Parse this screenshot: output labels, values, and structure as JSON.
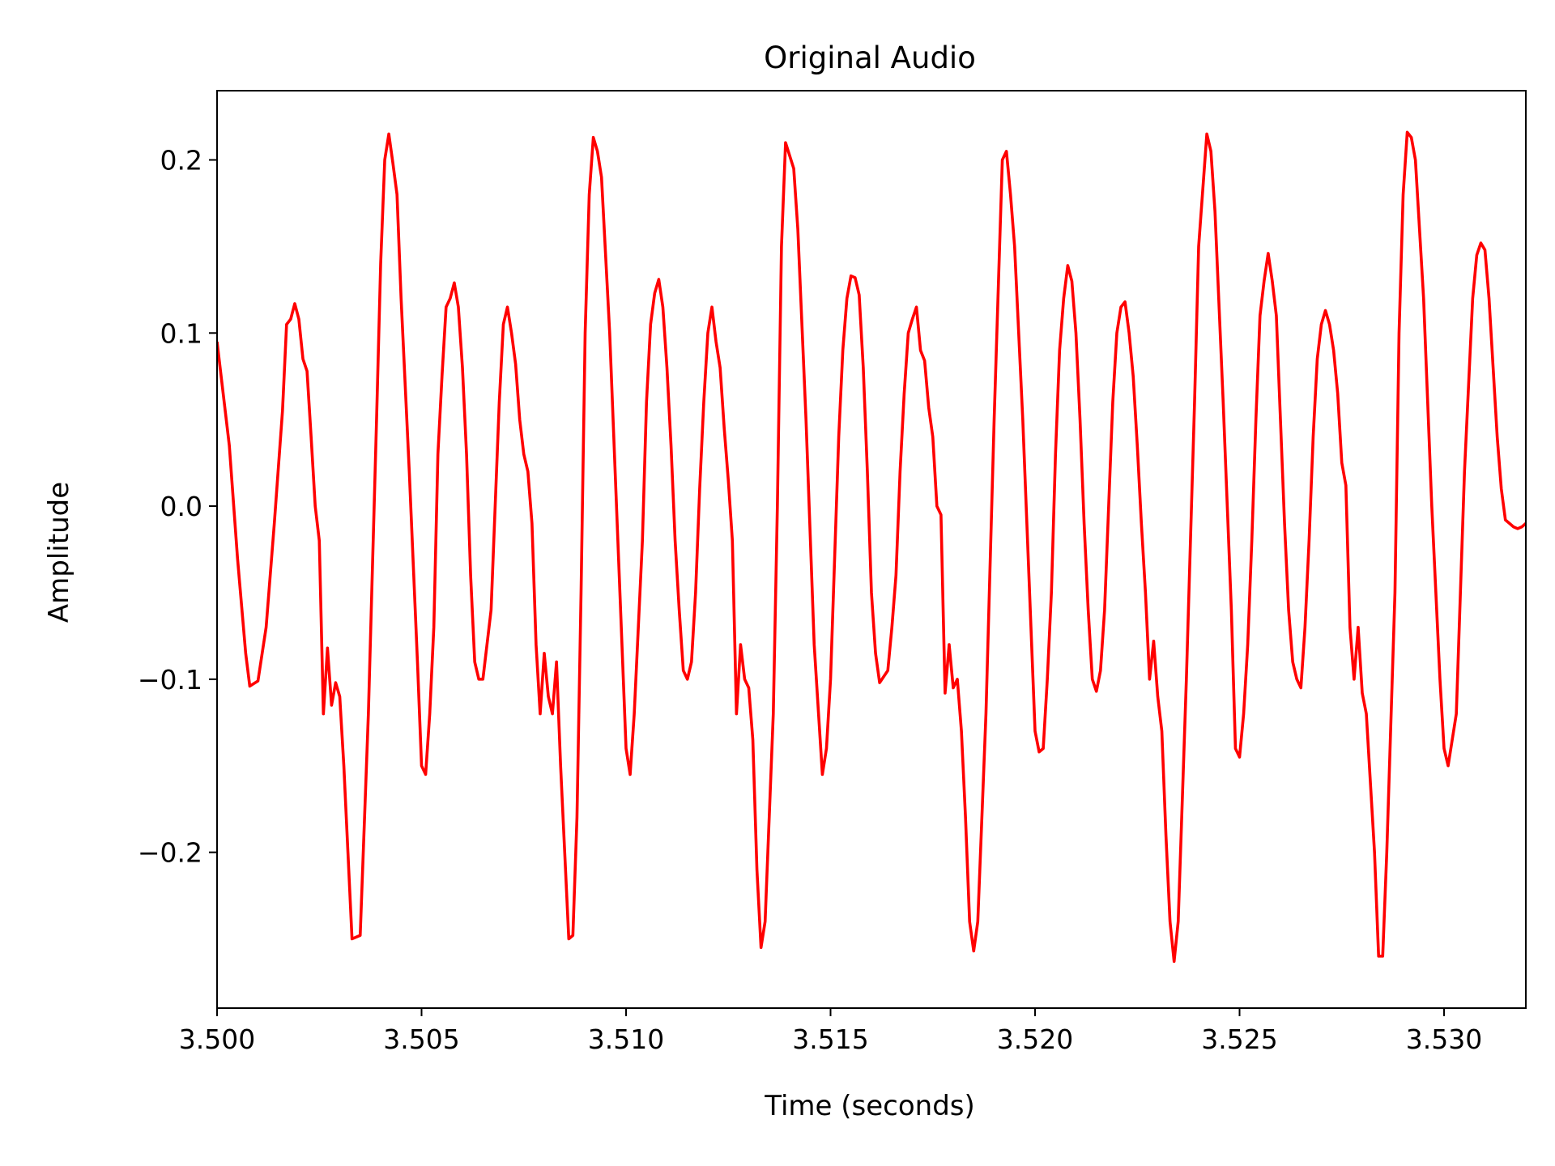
{
  "chart_data": {
    "type": "line",
    "title": "Original Audio",
    "xlabel": "Time (seconds)",
    "ylabel": "Amplitude",
    "xlim": [
      3.5,
      3.532
    ],
    "ylim": [
      -0.29,
      0.24
    ],
    "x_ticks": [
      3.5,
      3.505,
      3.51,
      3.515,
      3.52,
      3.525,
      3.53
    ],
    "x_tick_labels": [
      "3.500",
      "3.505",
      "3.510",
      "3.515",
      "3.520",
      "3.525",
      "3.530"
    ],
    "y_ticks": [
      -0.2,
      -0.1,
      0.0,
      0.1,
      0.2
    ],
    "y_tick_labels": [
      "−0.2",
      "−0.1",
      "0.0",
      "0.1",
      "0.2"
    ],
    "grid": false,
    "legend": "none",
    "series": [
      {
        "color": "#ff0000",
        "points": [
          [
            3.5,
            0.095
          ],
          [
            3.5003,
            0.035
          ],
          [
            3.5005,
            -0.03
          ],
          [
            3.5007,
            -0.085
          ],
          [
            3.5008,
            -0.104
          ],
          [
            3.501,
            -0.101
          ],
          [
            3.5012,
            -0.07
          ],
          [
            3.5014,
            -0.01
          ],
          [
            3.5016,
            0.055
          ],
          [
            3.5017,
            0.105
          ],
          [
            3.5018,
            0.108
          ],
          [
            3.5019,
            0.117
          ],
          [
            3.502,
            0.108
          ],
          [
            3.5021,
            0.085
          ],
          [
            3.5022,
            0.078
          ],
          [
            3.5023,
            0.04
          ],
          [
            3.5024,
            0.0
          ],
          [
            3.5025,
            -0.02
          ],
          [
            3.5026,
            -0.12
          ],
          [
            3.5027,
            -0.082
          ],
          [
            3.5028,
            -0.115
          ],
          [
            3.5029,
            -0.102
          ],
          [
            3.503,
            -0.11
          ],
          [
            3.5031,
            -0.15
          ],
          [
            3.5032,
            -0.2
          ],
          [
            3.5033,
            -0.25
          ],
          [
            3.5035,
            -0.248
          ],
          [
            3.5037,
            -0.12
          ],
          [
            3.5039,
            0.05
          ],
          [
            3.504,
            0.14
          ],
          [
            3.5041,
            0.2
          ],
          [
            3.5042,
            0.215
          ],
          [
            3.5043,
            0.198
          ],
          [
            3.5044,
            0.18
          ],
          [
            3.5045,
            0.12
          ],
          [
            3.5047,
            0.02
          ],
          [
            3.5049,
            -0.09
          ],
          [
            3.505,
            -0.15
          ],
          [
            3.5051,
            -0.155
          ],
          [
            3.5052,
            -0.12
          ],
          [
            3.5053,
            -0.07
          ],
          [
            3.5054,
            0.03
          ],
          [
            3.5055,
            0.075
          ],
          [
            3.5056,
            0.115
          ],
          [
            3.5057,
            0.12
          ],
          [
            3.5058,
            0.129
          ],
          [
            3.5059,
            0.115
          ],
          [
            3.506,
            0.08
          ],
          [
            3.5061,
            0.03
          ],
          [
            3.5062,
            -0.04
          ],
          [
            3.5063,
            -0.09
          ],
          [
            3.5064,
            -0.1
          ],
          [
            3.5065,
            -0.1
          ],
          [
            3.5067,
            -0.06
          ],
          [
            3.5068,
            0.0
          ],
          [
            3.5069,
            0.06
          ],
          [
            3.507,
            0.105
          ],
          [
            3.5071,
            0.115
          ],
          [
            3.5072,
            0.1
          ],
          [
            3.5073,
            0.082
          ],
          [
            3.5074,
            0.05
          ],
          [
            3.5075,
            0.03
          ],
          [
            3.5076,
            0.02
          ],
          [
            3.5077,
            -0.01
          ],
          [
            3.5078,
            -0.08
          ],
          [
            3.5079,
            -0.12
          ],
          [
            3.508,
            -0.085
          ],
          [
            3.5081,
            -0.11
          ],
          [
            3.5082,
            -0.12
          ],
          [
            3.5083,
            -0.09
          ],
          [
            3.5084,
            -0.15
          ],
          [
            3.5085,
            -0.2
          ],
          [
            3.5086,
            -0.25
          ],
          [
            3.5087,
            -0.248
          ],
          [
            3.5088,
            -0.18
          ],
          [
            3.5089,
            -0.05
          ],
          [
            3.509,
            0.1
          ],
          [
            3.5091,
            0.18
          ],
          [
            3.5092,
            0.213
          ],
          [
            3.5093,
            0.205
          ],
          [
            3.5094,
            0.19
          ],
          [
            3.5096,
            0.1
          ],
          [
            3.5098,
            -0.02
          ],
          [
            3.51,
            -0.14
          ],
          [
            3.5101,
            -0.155
          ],
          [
            3.5102,
            -0.12
          ],
          [
            3.5104,
            -0.02
          ],
          [
            3.5105,
            0.06
          ],
          [
            3.5106,
            0.105
          ],
          [
            3.5107,
            0.123
          ],
          [
            3.5108,
            0.131
          ],
          [
            3.5109,
            0.115
          ],
          [
            3.511,
            0.08
          ],
          [
            3.5111,
            0.035
          ],
          [
            3.5112,
            -0.02
          ],
          [
            3.5113,
            -0.06
          ],
          [
            3.5114,
            -0.095
          ],
          [
            3.5115,
            -0.1
          ],
          [
            3.5116,
            -0.09
          ],
          [
            3.5117,
            -0.05
          ],
          [
            3.5118,
            0.01
          ],
          [
            3.5119,
            0.06
          ],
          [
            3.512,
            0.1
          ],
          [
            3.5121,
            0.115
          ],
          [
            3.5122,
            0.095
          ],
          [
            3.5123,
            0.08
          ],
          [
            3.5124,
            0.045
          ],
          [
            3.5125,
            0.015
          ],
          [
            3.5126,
            -0.02
          ],
          [
            3.5127,
            -0.12
          ],
          [
            3.5128,
            -0.08
          ],
          [
            3.5129,
            -0.1
          ],
          [
            3.513,
            -0.105
          ],
          [
            3.5131,
            -0.135
          ],
          [
            3.5132,
            -0.21
          ],
          [
            3.5133,
            -0.255
          ],
          [
            3.5134,
            -0.24
          ],
          [
            3.5136,
            -0.12
          ],
          [
            3.5137,
            0.0
          ],
          [
            3.5138,
            0.15
          ],
          [
            3.5139,
            0.21
          ],
          [
            3.5141,
            0.195
          ],
          [
            3.5142,
            0.16
          ],
          [
            3.5144,
            0.05
          ],
          [
            3.5146,
            -0.08
          ],
          [
            3.5148,
            -0.155
          ],
          [
            3.5149,
            -0.14
          ],
          [
            3.515,
            -0.1
          ],
          [
            3.5151,
            -0.03
          ],
          [
            3.5152,
            0.04
          ],
          [
            3.5153,
            0.09
          ],
          [
            3.5154,
            0.12
          ],
          [
            3.5155,
            0.133
          ],
          [
            3.5156,
            0.132
          ],
          [
            3.5157,
            0.122
          ],
          [
            3.5158,
            0.08
          ],
          [
            3.5159,
            0.02
          ],
          [
            3.516,
            -0.05
          ],
          [
            3.5161,
            -0.085
          ],
          [
            3.5162,
            -0.102
          ],
          [
            3.5164,
            -0.095
          ],
          [
            3.5165,
            -0.07
          ],
          [
            3.5166,
            -0.04
          ],
          [
            3.5167,
            0.02
          ],
          [
            3.5168,
            0.065
          ],
          [
            3.5169,
            0.1
          ],
          [
            3.517,
            0.108
          ],
          [
            3.5171,
            0.115
          ],
          [
            3.5172,
            0.09
          ],
          [
            3.5173,
            0.084
          ],
          [
            3.5174,
            0.057
          ],
          [
            3.5175,
            0.04
          ],
          [
            3.5176,
            0.0
          ],
          [
            3.5177,
            -0.005
          ],
          [
            3.5178,
            -0.108
          ],
          [
            3.5179,
            -0.08
          ],
          [
            3.518,
            -0.105
          ],
          [
            3.5181,
            -0.1
          ],
          [
            3.5182,
            -0.13
          ],
          [
            3.5183,
            -0.18
          ],
          [
            3.5184,
            -0.24
          ],
          [
            3.5185,
            -0.257
          ],
          [
            3.5186,
            -0.24
          ],
          [
            3.5188,
            -0.12
          ],
          [
            3.519,
            0.05
          ],
          [
            3.5191,
            0.125
          ],
          [
            3.5192,
            0.2
          ],
          [
            3.5193,
            0.205
          ],
          [
            3.5194,
            0.18
          ],
          [
            3.5195,
            0.15
          ],
          [
            3.5197,
            0.05
          ],
          [
            3.5199,
            -0.07
          ],
          [
            3.52,
            -0.13
          ],
          [
            3.5201,
            -0.142
          ],
          [
            3.5202,
            -0.14
          ],
          [
            3.5203,
            -0.1
          ],
          [
            3.5204,
            -0.05
          ],
          [
            3.5205,
            0.03
          ],
          [
            3.5206,
            0.09
          ],
          [
            3.5207,
            0.12
          ],
          [
            3.5208,
            0.139
          ],
          [
            3.5209,
            0.13
          ],
          [
            3.521,
            0.1
          ],
          [
            3.5211,
            0.05
          ],
          [
            3.5212,
            -0.01
          ],
          [
            3.5213,
            -0.06
          ],
          [
            3.5214,
            -0.1
          ],
          [
            3.5215,
            -0.107
          ],
          [
            3.5216,
            -0.095
          ],
          [
            3.5217,
            -0.06
          ],
          [
            3.5218,
            0.0
          ],
          [
            3.5219,
            0.06
          ],
          [
            3.522,
            0.1
          ],
          [
            3.5221,
            0.115
          ],
          [
            3.5222,
            0.118
          ],
          [
            3.5223,
            0.1
          ],
          [
            3.5224,
            0.075
          ],
          [
            3.5225,
            0.035
          ],
          [
            3.5226,
            -0.01
          ],
          [
            3.5227,
            -0.05
          ],
          [
            3.5228,
            -0.1
          ],
          [
            3.5229,
            -0.078
          ],
          [
            3.523,
            -0.11
          ],
          [
            3.5231,
            -0.13
          ],
          [
            3.5232,
            -0.19
          ],
          [
            3.5233,
            -0.24
          ],
          [
            3.5234,
            -0.263
          ],
          [
            3.5235,
            -0.24
          ],
          [
            3.5237,
            -0.1
          ],
          [
            3.5239,
            0.06
          ],
          [
            3.524,
            0.15
          ],
          [
            3.5242,
            0.215
          ],
          [
            3.5243,
            0.205
          ],
          [
            3.5244,
            0.17
          ],
          [
            3.5246,
            0.06
          ],
          [
            3.5248,
            -0.06
          ],
          [
            3.5249,
            -0.14
          ],
          [
            3.525,
            -0.145
          ],
          [
            3.5251,
            -0.12
          ],
          [
            3.5252,
            -0.08
          ],
          [
            3.5253,
            -0.02
          ],
          [
            3.5254,
            0.05
          ],
          [
            3.5255,
            0.11
          ],
          [
            3.5256,
            0.13
          ],
          [
            3.5257,
            0.146
          ],
          [
            3.5258,
            0.13
          ],
          [
            3.5259,
            0.11
          ],
          [
            3.526,
            0.05
          ],
          [
            3.5261,
            -0.01
          ],
          [
            3.5262,
            -0.06
          ],
          [
            3.5263,
            -0.09
          ],
          [
            3.5264,
            -0.1
          ],
          [
            3.5265,
            -0.105
          ],
          [
            3.5266,
            -0.07
          ],
          [
            3.5267,
            -0.02
          ],
          [
            3.5268,
            0.04
          ],
          [
            3.5269,
            0.085
          ],
          [
            3.527,
            0.105
          ],
          [
            3.5271,
            0.113
          ],
          [
            3.5272,
            0.105
          ],
          [
            3.5273,
            0.09
          ],
          [
            3.5274,
            0.065
          ],
          [
            3.5275,
            0.025
          ],
          [
            3.5276,
            0.012
          ],
          [
            3.5277,
            -0.07
          ],
          [
            3.5278,
            -0.1
          ],
          [
            3.5279,
            -0.07
          ],
          [
            3.528,
            -0.108
          ],
          [
            3.5281,
            -0.12
          ],
          [
            3.5282,
            -0.16
          ],
          [
            3.5283,
            -0.2
          ],
          [
            3.5284,
            -0.26
          ],
          [
            3.5285,
            -0.26
          ],
          [
            3.5286,
            -0.2
          ],
          [
            3.5288,
            -0.05
          ],
          [
            3.5289,
            0.1
          ],
          [
            3.529,
            0.18
          ],
          [
            3.5291,
            0.216
          ],
          [
            3.5292,
            0.213
          ],
          [
            3.5293,
            0.2
          ],
          [
            3.5295,
            0.12
          ],
          [
            3.5297,
            0.0
          ],
          [
            3.5299,
            -0.1
          ],
          [
            3.53,
            -0.14
          ],
          [
            3.5301,
            -0.15
          ],
          [
            3.5302,
            -0.135
          ],
          [
            3.5303,
            -0.12
          ],
          [
            3.5304,
            -0.05
          ],
          [
            3.5305,
            0.02
          ],
          [
            3.5306,
            0.07
          ],
          [
            3.5307,
            0.12
          ],
          [
            3.5308,
            0.145
          ],
          [
            3.5309,
            0.152
          ],
          [
            3.531,
            0.148
          ],
          [
            3.5311,
            0.12
          ],
          [
            3.5312,
            0.08
          ],
          [
            3.5313,
            0.04
          ],
          [
            3.5314,
            0.01
          ],
          [
            3.5315,
            -0.008
          ],
          [
            3.5316,
            -0.01
          ],
          [
            3.5317,
            -0.012
          ],
          [
            3.5318,
            -0.013
          ],
          [
            3.5319,
            -0.012
          ],
          [
            3.532,
            -0.01
          ]
        ]
      }
    ]
  }
}
